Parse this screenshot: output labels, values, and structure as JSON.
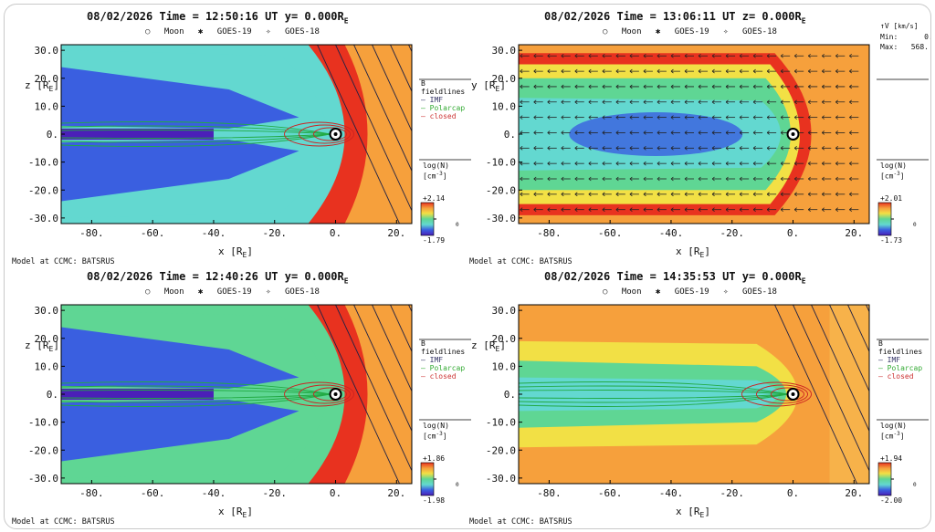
{
  "chart_data": [
    {
      "type": "heatmap",
      "title": "08/02/2026 Time = 12:50:16 UT y= 0.000R",
      "title_sub": "E",
      "legend": [
        "Moon",
        "GOES-19",
        "GOES-18"
      ],
      "xlabel": "x [R",
      "xlabel_sub": "E",
      "ylabel": "z [R",
      "ylabel_sub": "E",
      "xlim": [
        -90,
        25
      ],
      "ylim": [
        -32,
        32
      ],
      "xticks": [
        "-80.",
        "-60.",
        "-40.",
        "-20.",
        "0.",
        "20."
      ],
      "yticks": [
        "30.0",
        "20.0",
        "10.0",
        "0.",
        "-10.0",
        "-20.0",
        "-30.0"
      ],
      "xtick_values": [
        -80,
        -60,
        -40,
        -20,
        0,
        20
      ],
      "ytick_values": [
        30,
        20,
        10,
        0,
        -10,
        -20,
        -30
      ],
      "field_legend": {
        "title": "B fieldlines",
        "imf": "IMF",
        "polarcap": "Polarcap",
        "closed": "closed"
      },
      "colorbar": {
        "label": "log(N)",
        "unit": "[cm",
        "unit_sup": "-3",
        "max": "+2.14",
        "min": "-1.79",
        "mid": "0"
      },
      "credit": "Model at CCMC: BATSRUS",
      "overlay": "fieldlines",
      "background": "#63d8d0"
    },
    {
      "type": "heatmap",
      "title": "08/02/2026 Time = 13:06:11 UT z= 0.000R",
      "title_sub": "E",
      "legend": [
        "Moon",
        "GOES-19",
        "GOES-18"
      ],
      "xlabel": "x [R",
      "xlabel_sub": "E",
      "ylabel": "y [R",
      "ylabel_sub": "E",
      "xlim": [
        -90,
        25
      ],
      "ylim": [
        -32,
        32
      ],
      "xticks": [
        "-80.",
        "-60.",
        "-40.",
        "-20.",
        "0.",
        "20."
      ],
      "yticks": [
        "30.0",
        "20.0",
        "10.0",
        "0.",
        "-10.0",
        "-20.0",
        "-30.0"
      ],
      "xtick_values": [
        -80,
        -60,
        -40,
        -20,
        0,
        20
      ],
      "ytick_values": [
        30,
        20,
        10,
        0,
        -10,
        -20,
        -30
      ],
      "velocity_legend": {
        "label": "V [",
        "unit": "km",
        "unit_den": "s",
        "min_label": "Min:",
        "min_value": "0.",
        "max_label": "Max:",
        "max_value": "568."
      },
      "colorbar": {
        "label": "log(N)",
        "unit": "[cm",
        "unit_sup": "-3",
        "max": "+2.01",
        "min": "-1.73",
        "mid": "0"
      },
      "credit": "Model at CCMC: BATSRUS",
      "overlay": "vectors",
      "background": "#f6a03c"
    },
    {
      "type": "heatmap",
      "title": "08/02/2026 Time = 12:40:26 UT y= 0.000R",
      "title_sub": "E",
      "legend": [
        "Moon",
        "GOES-19",
        "GOES-18"
      ],
      "xlabel": "x [R",
      "xlabel_sub": "E",
      "ylabel": "z [R",
      "ylabel_sub": "E",
      "xlim": [
        -90,
        25
      ],
      "ylim": [
        -32,
        32
      ],
      "xticks": [
        "-80.",
        "-60.",
        "-40.",
        "-20.",
        "0.",
        "20."
      ],
      "yticks": [
        "30.0",
        "20.0",
        "10.0",
        "0.",
        "-10.0",
        "-20.0",
        "-30.0"
      ],
      "xtick_values": [
        -80,
        -60,
        -40,
        -20,
        0,
        20
      ],
      "ytick_values": [
        30,
        20,
        10,
        0,
        -10,
        -20,
        -30
      ],
      "field_legend": {
        "title": "B fieldlines",
        "imf": "IMF",
        "polarcap": "Polarcap",
        "closed": "closed"
      },
      "colorbar": {
        "label": "log(N)",
        "unit": "[cm",
        "unit_sup": "-3",
        "max": "+1.86",
        "min": "-1.98",
        "mid": "0"
      },
      "credit": "Model at CCMC: BATSRUS",
      "overlay": "fieldlines",
      "background": "#5fd694"
    },
    {
      "type": "heatmap",
      "title": "08/02/2026 Time = 14:35:53 UT y= 0.000R",
      "title_sub": "E",
      "legend": [
        "Moon",
        "GOES-19",
        "GOES-18"
      ],
      "xlabel": "x [R",
      "xlabel_sub": "E",
      "ylabel": "z [R",
      "ylabel_sub": "E",
      "xlim": [
        -90,
        25
      ],
      "ylim": [
        -32,
        32
      ],
      "xticks": [
        "-80.",
        "-60.",
        "-40.",
        "-20.",
        "0.",
        "20."
      ],
      "yticks": [
        "30.0",
        "20.0",
        "10.0",
        "0.",
        "-10.0",
        "-20.0",
        "-30.0"
      ],
      "xtick_values": [
        -80,
        -60,
        -40,
        -20,
        0,
        20
      ],
      "ytick_values": [
        30,
        20,
        10,
        0,
        -10,
        -20,
        -30
      ],
      "field_legend": {
        "title": "B fieldlines",
        "imf": "IMF",
        "polarcap": "Polarcap",
        "closed": "closed"
      },
      "colorbar": {
        "label": "log(N)",
        "unit": "[cm",
        "unit_sup": "-3",
        "max": "+1.94",
        "min": "-2.00",
        "mid": "0"
      },
      "credit": "Model at CCMC: BATSRUS",
      "overlay": "fieldlines",
      "background": "#f7b24a"
    }
  ],
  "colors": {
    "magenta_deep": "#4b1fb8",
    "blue": "#3a5fe0",
    "cyan": "#63d8d0",
    "green": "#5fd694",
    "yellow": "#f2e045",
    "orange": "#f6a03c",
    "red": "#e8321f",
    "field_imf": "#222244",
    "field_polarcap": "#22aa44",
    "field_closed": "#cc2222"
  }
}
